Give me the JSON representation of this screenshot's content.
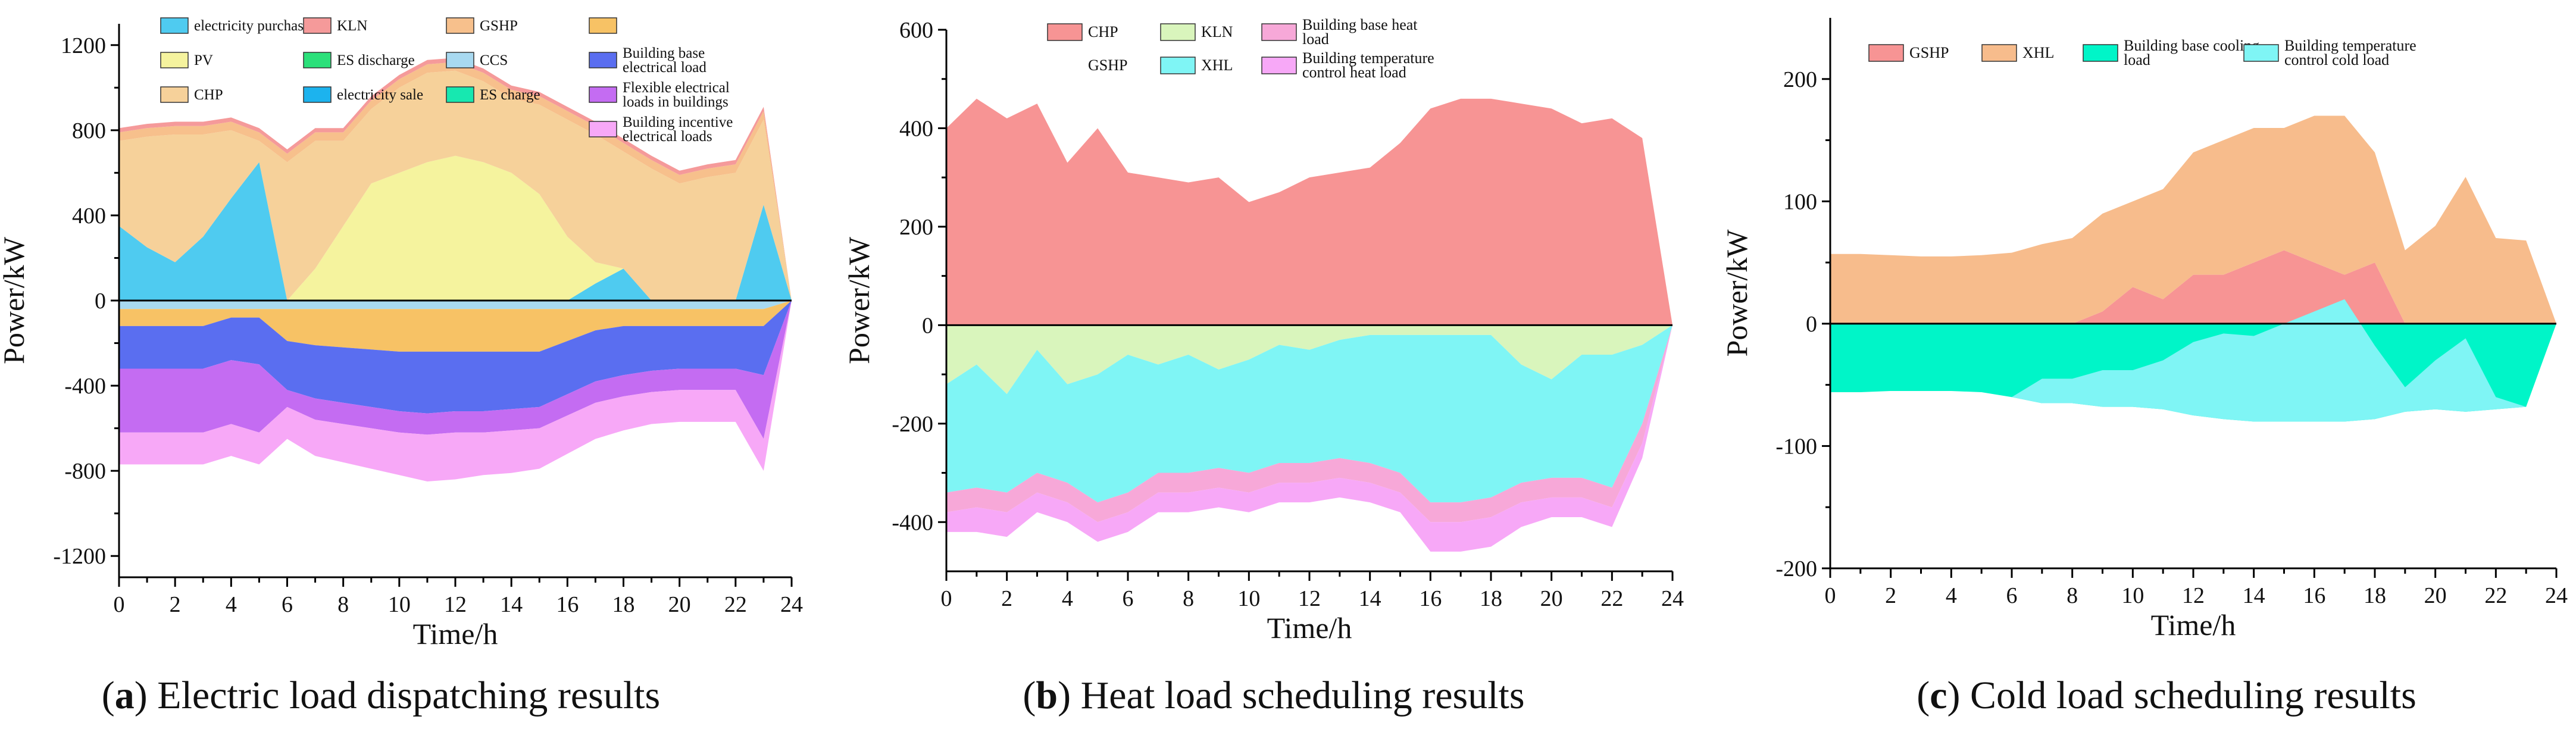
{
  "figure": {
    "panels": [
      {
        "caption_letter": "a",
        "caption_text": "Electric load dispatching results"
      },
      {
        "caption_letter": "b",
        "caption_text": "Heat load scheduling results"
      },
      {
        "caption_letter": "c",
        "caption_text": "Cold load scheduling results"
      }
    ]
  },
  "chart_data": [
    {
      "type": "area",
      "title": "Electric load dispatching results",
      "xlabel": "Time/h",
      "ylabel": "Power/kW",
      "xlim": [
        0,
        24
      ],
      "ylim": [
        -1300,
        1300
      ],
      "xticks": [
        0,
        2,
        4,
        6,
        8,
        10,
        12,
        14,
        16,
        18,
        20,
        22,
        24
      ],
      "yticks": [
        -1200,
        -800,
        -400,
        0,
        400,
        800,
        1200
      ],
      "x": [
        0,
        1,
        2,
        3,
        4,
        5,
        6,
        7,
        8,
        9,
        10,
        11,
        12,
        13,
        14,
        15,
        16,
        17,
        18,
        19,
        20,
        21,
        22,
        23,
        24
      ],
      "legend": [
        {
          "label": "electricity purchase",
          "color": "#4fcbf0"
        },
        {
          "label": "KLN",
          "color": "#f59a9a"
        },
        {
          "label": "GSHP",
          "color": "#f7c08c"
        },
        {
          "label": "",
          "color": "#f7c265"
        },
        {
          "label": "PV",
          "color": "#f5f39e"
        },
        {
          "label": "ES discharge",
          "color": "#2be07a"
        },
        {
          "label": "CCS",
          "color": "#a8d9f0"
        },
        {
          "label": "Building base electrical load",
          "color": "#5a6ef0"
        },
        {
          "label": "CHP",
          "color": "#f6d19a"
        },
        {
          "label": "electricity sale",
          "color": "#1cb3ee"
        },
        {
          "label": "ES charge",
          "color": "#17e8b0"
        },
        {
          "label": "Flexible electrical loads in buildings",
          "color": "#c46cf2"
        },
        {
          "label": "",
          "color": "",
          "skip": true
        },
        {
          "label": "",
          "color": "",
          "skip": true
        },
        {
          "label": "",
          "color": "",
          "skip": true
        },
        {
          "label": "Building incentive electrical loads",
          "color": "#f7a8f7"
        }
      ],
      "series_pos": [
        {
          "name": "electricity purchase",
          "color": "#4fcbf0",
          "values": [
            350,
            250,
            180,
            300,
            480,
            650,
            0,
            0,
            0,
            0,
            0,
            0,
            0,
            0,
            0,
            0,
            0,
            80,
            150,
            0,
            0,
            0,
            0,
            450,
            0
          ]
        },
        {
          "name": "PV",
          "color": "#f5f39e",
          "values": [
            0,
            0,
            0,
            0,
            0,
            0,
            0,
            150,
            350,
            550,
            600,
            650,
            680,
            650,
            600,
            500,
            300,
            100,
            0,
            0,
            0,
            0,
            0,
            0,
            0
          ]
        },
        {
          "name": "CHP",
          "color": "#f6d19a",
          "values": [
            400,
            520,
            600,
            480,
            320,
            100,
            650,
            600,
            400,
            350,
            400,
            420,
            400,
            380,
            350,
            420,
            550,
            600,
            550,
            620,
            550,
            580,
            600,
            400,
            0
          ]
        },
        {
          "name": "GSHP",
          "color": "#f7c08c",
          "values": [
            40,
            40,
            40,
            40,
            40,
            40,
            40,
            40,
            40,
            40,
            40,
            40,
            40,
            40,
            40,
            40,
            40,
            40,
            40,
            40,
            40,
            40,
            40,
            40,
            0
          ]
        },
        {
          "name": "KLN",
          "color": "#f59a9a",
          "values": [
            20,
            20,
            20,
            20,
            20,
            20,
            20,
            20,
            20,
            20,
            20,
            20,
            20,
            20,
            20,
            20,
            20,
            20,
            20,
            20,
            20,
            20,
            20,
            20,
            0
          ]
        }
      ],
      "series_neg": [
        {
          "name": "CCS",
          "color": "#a8d9f0",
          "values": [
            -40,
            -40,
            -40,
            -40,
            -40,
            -40,
            -40,
            -40,
            -40,
            -40,
            -40,
            -40,
            -40,
            -40,
            -40,
            -40,
            -40,
            -40,
            -40,
            -40,
            -40,
            -40,
            -40,
            -40,
            0
          ]
        },
        {
          "name": "",
          "color": "#f7c265",
          "values": [
            -80,
            -80,
            -80,
            -80,
            -40,
            -40,
            -150,
            -170,
            -180,
            -190,
            -200,
            -200,
            -200,
            -200,
            -200,
            -200,
            -150,
            -100,
            -80,
            -80,
            -80,
            -80,
            -80,
            -80,
            0
          ]
        },
        {
          "name": "Building base electrical load",
          "color": "#5a6ef0",
          "values": [
            -200,
            -200,
            -200,
            -200,
            -200,
            -220,
            -230,
            -250,
            -260,
            -270,
            -280,
            -290,
            -280,
            -280,
            -270,
            -260,
            -250,
            -240,
            -230,
            -210,
            -200,
            -200,
            -200,
            -230,
            0
          ]
        },
        {
          "name": "Flexible electrical loads in buildings",
          "color": "#c46cf2",
          "values": [
            -300,
            -300,
            -300,
            -300,
            -300,
            -320,
            -80,
            -100,
            -100,
            -100,
            -100,
            -100,
            -100,
            -100,
            -100,
            -100,
            -100,
            -100,
            -100,
            -100,
            -100,
            -100,
            -100,
            -300,
            0
          ]
        },
        {
          "name": "Building incentive electrical loads",
          "color": "#f7a8f7",
          "values": [
            -150,
            -150,
            -150,
            -150,
            -150,
            -150,
            -150,
            -170,
            -180,
            -190,
            -200,
            -220,
            -220,
            -200,
            -200,
            -190,
            -180,
            -170,
            -160,
            -150,
            -150,
            -150,
            -150,
            -150,
            0
          ]
        }
      ]
    },
    {
      "type": "area",
      "title": "Heat load scheduling results",
      "xlabel": "Time/h",
      "ylabel": "Power/kW",
      "xlim": [
        0,
        24
      ],
      "ylim": [
        -500,
        600
      ],
      "xticks": [
        0,
        2,
        4,
        6,
        8,
        10,
        12,
        14,
        16,
        18,
        20,
        22,
        24
      ],
      "yticks": [
        -400,
        -200,
        0,
        200,
        400,
        600
      ],
      "x": [
        0,
        1,
        2,
        3,
        4,
        5,
        6,
        7,
        8,
        9,
        10,
        11,
        12,
        13,
        14,
        15,
        16,
        17,
        18,
        19,
        20,
        21,
        22,
        23,
        24
      ],
      "legend": [
        {
          "label": "CHP",
          "color": "#f79494"
        },
        {
          "label": "KLN",
          "color": "#d9f5bc"
        },
        {
          "label": "Building base heat load",
          "color": "#f7a8d8"
        },
        {
          "label": "GSHP",
          "color": "",
          "noswatch": true
        },
        {
          "label": "XHL",
          "color": "#7ff5f5"
        },
        {
          "label": "Building temperature control heat load",
          "color": "#f7a8f7"
        }
      ],
      "series_pos": [
        {
          "name": "CHP",
          "color": "#f79494",
          "values": [
            400,
            460,
            420,
            450,
            330,
            400,
            310,
            300,
            290,
            300,
            250,
            270,
            300,
            310,
            320,
            370,
            440,
            460,
            460,
            450,
            440,
            410,
            420,
            380,
            0
          ]
        }
      ],
      "series_neg": [
        {
          "name": "KLN",
          "color": "#d9f5bc",
          "values": [
            -120,
            -80,
            -140,
            -50,
            -120,
            -100,
            -60,
            -80,
            -60,
            -90,
            -70,
            -40,
            -50,
            -30,
            -20,
            -20,
            -20,
            -20,
            -20,
            -80,
            -110,
            -60,
            -60,
            -40,
            0
          ]
        },
        {
          "name": "XHL",
          "color": "#7ff5f5",
          "values": [
            -220,
            -250,
            -200,
            -250,
            -200,
            -260,
            -280,
            -220,
            -240,
            -200,
            -230,
            -240,
            -230,
            -240,
            -260,
            -280,
            -340,
            -340,
            -330,
            -240,
            -200,
            -250,
            -270,
            -160,
            0
          ]
        },
        {
          "name": "Building base heat load",
          "color": "#f7a8d8",
          "values": [
            -40,
            -40,
            -40,
            -40,
            -40,
            -40,
            -40,
            -40,
            -40,
            -40,
            -40,
            -40,
            -40,
            -40,
            -40,
            -40,
            -40,
            -40,
            -40,
            -40,
            -40,
            -40,
            -40,
            -40,
            0
          ]
        },
        {
          "name": "Building temperature control heat load",
          "color": "#f7a8f7",
          "values": [
            -40,
            -50,
            -50,
            -40,
            -40,
            -40,
            -40,
            -40,
            -40,
            -40,
            -40,
            -40,
            -40,
            -40,
            -40,
            -40,
            -60,
            -60,
            -60,
            -50,
            -40,
            -40,
            -40,
            -30,
            0
          ]
        }
      ]
    },
    {
      "type": "area",
      "title": "Cold load scheduling results",
      "xlabel": "Time/h",
      "ylabel": "Power/kW",
      "xlim": [
        0,
        24
      ],
      "ylim": [
        -200,
        250
      ],
      "xticks": [
        0,
        2,
        4,
        6,
        8,
        10,
        12,
        14,
        16,
        18,
        20,
        22,
        24
      ],
      "yticks": [
        -200,
        -100,
        0,
        100,
        200
      ],
      "x": [
        0,
        1,
        2,
        3,
        4,
        5,
        6,
        7,
        8,
        9,
        10,
        11,
        12,
        13,
        14,
        15,
        16,
        17,
        18,
        19,
        20,
        21,
        22,
        23,
        24
      ],
      "legend": [
        {
          "label": "GSHP",
          "color": "#f79494"
        },
        {
          "label": "XHL",
          "color": "#f7bc8c"
        },
        {
          "label": "Building base cooling load",
          "color": "#00f5c8"
        },
        {
          "label": "Building temperature control cold load",
          "color": "#7ff5f5"
        }
      ],
      "series_pos": [
        {
          "name": "GSHP",
          "color": "#f79494",
          "values": [
            0,
            0,
            0,
            0,
            0,
            0,
            0,
            0,
            0,
            10,
            30,
            20,
            40,
            40,
            50,
            60,
            50,
            40,
            50,
            0,
            0,
            0,
            0,
            0,
            0
          ]
        },
        {
          "name": "XHL",
          "color": "#f7bc8c",
          "values": [
            57,
            57,
            56,
            55,
            55,
            56,
            58,
            65,
            70,
            80,
            70,
            90,
            100,
            110,
            110,
            100,
            120,
            130,
            90,
            60,
            80,
            120,
            70,
            68,
            0
          ]
        }
      ],
      "series_neg": [
        {
          "name": "Building base cooling load",
          "color": "#00f5c8",
          "values": [
            -56,
            -56,
            -55,
            -55,
            -55,
            -56,
            -60,
            -65,
            -65,
            -68,
            -68,
            -70,
            -75,
            -78,
            -80,
            -80,
            -80,
            -80,
            -78,
            -72,
            -70,
            -72,
            -70,
            -68,
            0
          ]
        },
        {
          "name": "Building temperature control cold load",
          "color": "#7ff5f5",
          "values": [
            0,
            0,
            0,
            0,
            0,
            0,
            0,
            20,
            20,
            30,
            30,
            40,
            60,
            70,
            70,
            80,
            90,
            100,
            60,
            20,
            40,
            60,
            10,
            0,
            0
          ]
        }
      ]
    }
  ]
}
